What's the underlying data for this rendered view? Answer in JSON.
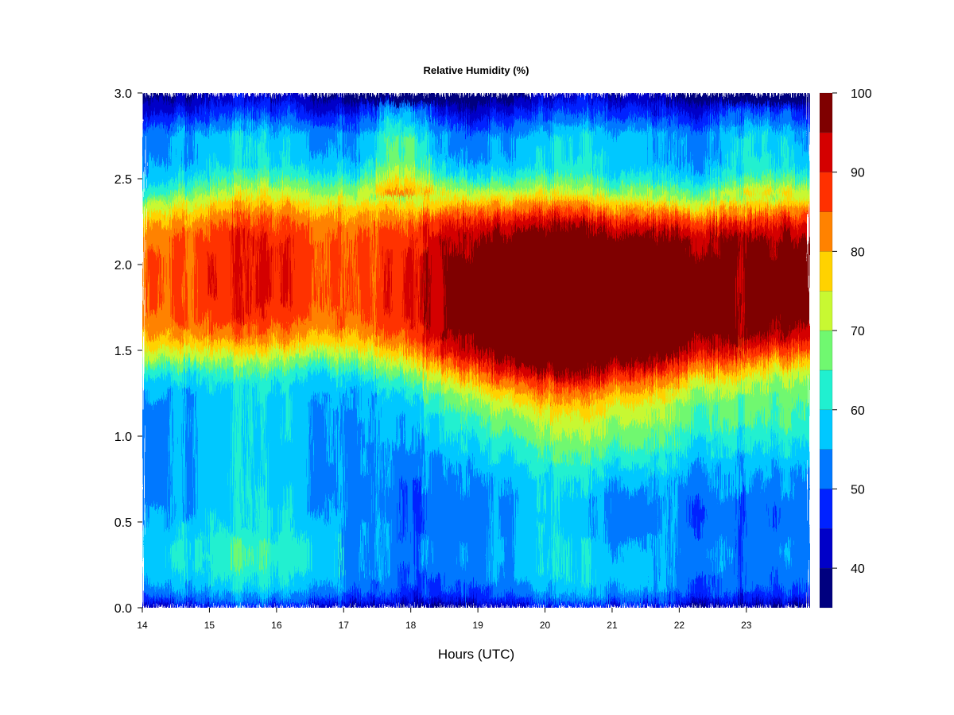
{
  "chart_data": {
    "type": "heatmap",
    "title": "Relative Humidity (%)",
    "xlabel": "Hours (UTC)",
    "ylabel": "",
    "x_ticks": [
      "14",
      "15",
      "16",
      "17",
      "18",
      "19",
      "20",
      "21",
      "22",
      "23"
    ],
    "y_ticks": [
      "0.0",
      "0.5",
      "1.0",
      "1.5",
      "2.0",
      "2.5",
      "3.0"
    ],
    "xlim": [
      14,
      23.95
    ],
    "ylim": [
      0,
      3
    ],
    "colorbar": {
      "levels": [
        35,
        40,
        45,
        50,
        55,
        60,
        65,
        70,
        75,
        80,
        85,
        90,
        95,
        100
      ],
      "labels": [
        "40",
        "50",
        "60",
        "70",
        "80",
        "90",
        "100"
      ],
      "colors": [
        "#00007f",
        "#0000c8",
        "#0022ff",
        "#0078ff",
        "#00c8ff",
        "#20f0d0",
        "#70f870",
        "#c8f832",
        "#ffd200",
        "#ff8200",
        "#ff3000",
        "#d40000",
        "#7f0000"
      ]
    },
    "structure": {
      "humid_layer_height_range": [
        1.5,
        2.3
      ],
      "humid_layer_peak_humidity": 100,
      "surface_humidity": 40,
      "top_humidity": 45
    }
  }
}
